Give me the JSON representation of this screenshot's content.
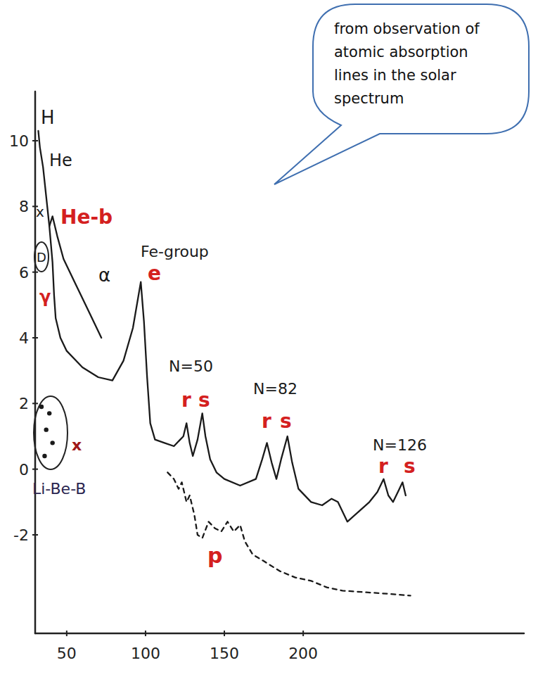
{
  "chart_data": {
    "type": "line",
    "callout": "from observation of atomic absorption lines in the solar spectrum",
    "xlim": [
      30,
      340
    ],
    "xticks": [
      50,
      100,
      150,
      200
    ],
    "ylim": [
      -5,
      11.5
    ],
    "yticks": [
      -2,
      0,
      2,
      4,
      6,
      8,
      10
    ],
    "grid": false,
    "annotations": [
      "H",
      "He",
      "x",
      "He-b",
      "D",
      "α",
      "γ",
      "Fe-group",
      "e",
      "N=50",
      "r",
      "s",
      "N=82",
      "r",
      "s",
      "N=126",
      "r",
      "s",
      "Li-Be-B",
      "x",
      "p"
    ],
    "series": [
      {
        "type": "line",
        "line_style": "solid",
        "color": "#1a1a1a",
        "x": [
          32,
          33,
          35,
          37,
          39,
          41,
          42,
          43,
          46,
          50,
          60,
          70,
          79,
          86,
          92,
          97,
          99,
          101,
          103,
          106,
          112,
          118,
          122,
          124,
          126,
          128,
          130,
          133,
          136,
          138,
          141,
          145,
          150,
          160,
          170,
          174,
          177,
          180,
          183,
          186,
          190,
          193,
          197,
          205,
          212,
          218,
          222,
          228,
          235,
          242,
          247,
          251,
          254,
          257,
          261,
          263,
          265
        ],
        "values": [
          10.3,
          9.8,
          9.2,
          8.3,
          7.4,
          6.3,
          5.3,
          4.6,
          4.0,
          3.6,
          3.1,
          2.8,
          2.7,
          3.3,
          4.3,
          5.7,
          4.5,
          2.8,
          1.4,
          0.9,
          0.8,
          0.7,
          0.9,
          1.0,
          1.4,
          0.8,
          0.4,
          0.9,
          1.7,
          1.0,
          0.3,
          -0.1,
          -0.3,
          -0.5,
          -0.3,
          0.3,
          0.8,
          0.2,
          -0.3,
          0.3,
          1.0,
          0.2,
          -0.6,
          -1.0,
          -1.1,
          -0.9,
          -1.0,
          -1.6,
          -1.3,
          -1.0,
          -0.7,
          -0.3,
          -0.8,
          -1.0,
          -0.6,
          -0.4,
          -0.8
        ]
      },
      {
        "type": "line",
        "line_style": "solid",
        "color": "#1a1a1a",
        "x": [
          39,
          41,
          44,
          48,
          55,
          62,
          68,
          72
        ],
        "values": [
          7.4,
          7.7,
          7.1,
          6.4,
          5.7,
          5.0,
          4.4,
          4.0
        ]
      },
      {
        "type": "line",
        "line_style": "dashed",
        "color": "#1a1a1a",
        "x": [
          114,
          118,
          121,
          123,
          126,
          128,
          131,
          133,
          136,
          140,
          144,
          148,
          152,
          156,
          160,
          163,
          168,
          175,
          185,
          195,
          205,
          215,
          225,
          240,
          255,
          268
        ],
        "values": [
          -0.1,
          -0.3,
          -0.6,
          -0.4,
          -1.0,
          -0.8,
          -1.4,
          -2.0,
          -2.1,
          -1.6,
          -1.8,
          -1.9,
          -1.6,
          -1.9,
          -1.7,
          -2.2,
          -2.6,
          -2.8,
          -3.1,
          -3.3,
          -3.4,
          -3.6,
          -3.7,
          -3.75,
          -3.8,
          -3.85
        ]
      },
      {
        "type": "scatter",
        "marker": "circle",
        "color": "#1a1a1a",
        "x": [
          34,
          37,
          39,
          41,
          36
        ],
        "values": [
          1.9,
          1.2,
          1.7,
          0.8,
          0.4
        ]
      }
    ]
  }
}
